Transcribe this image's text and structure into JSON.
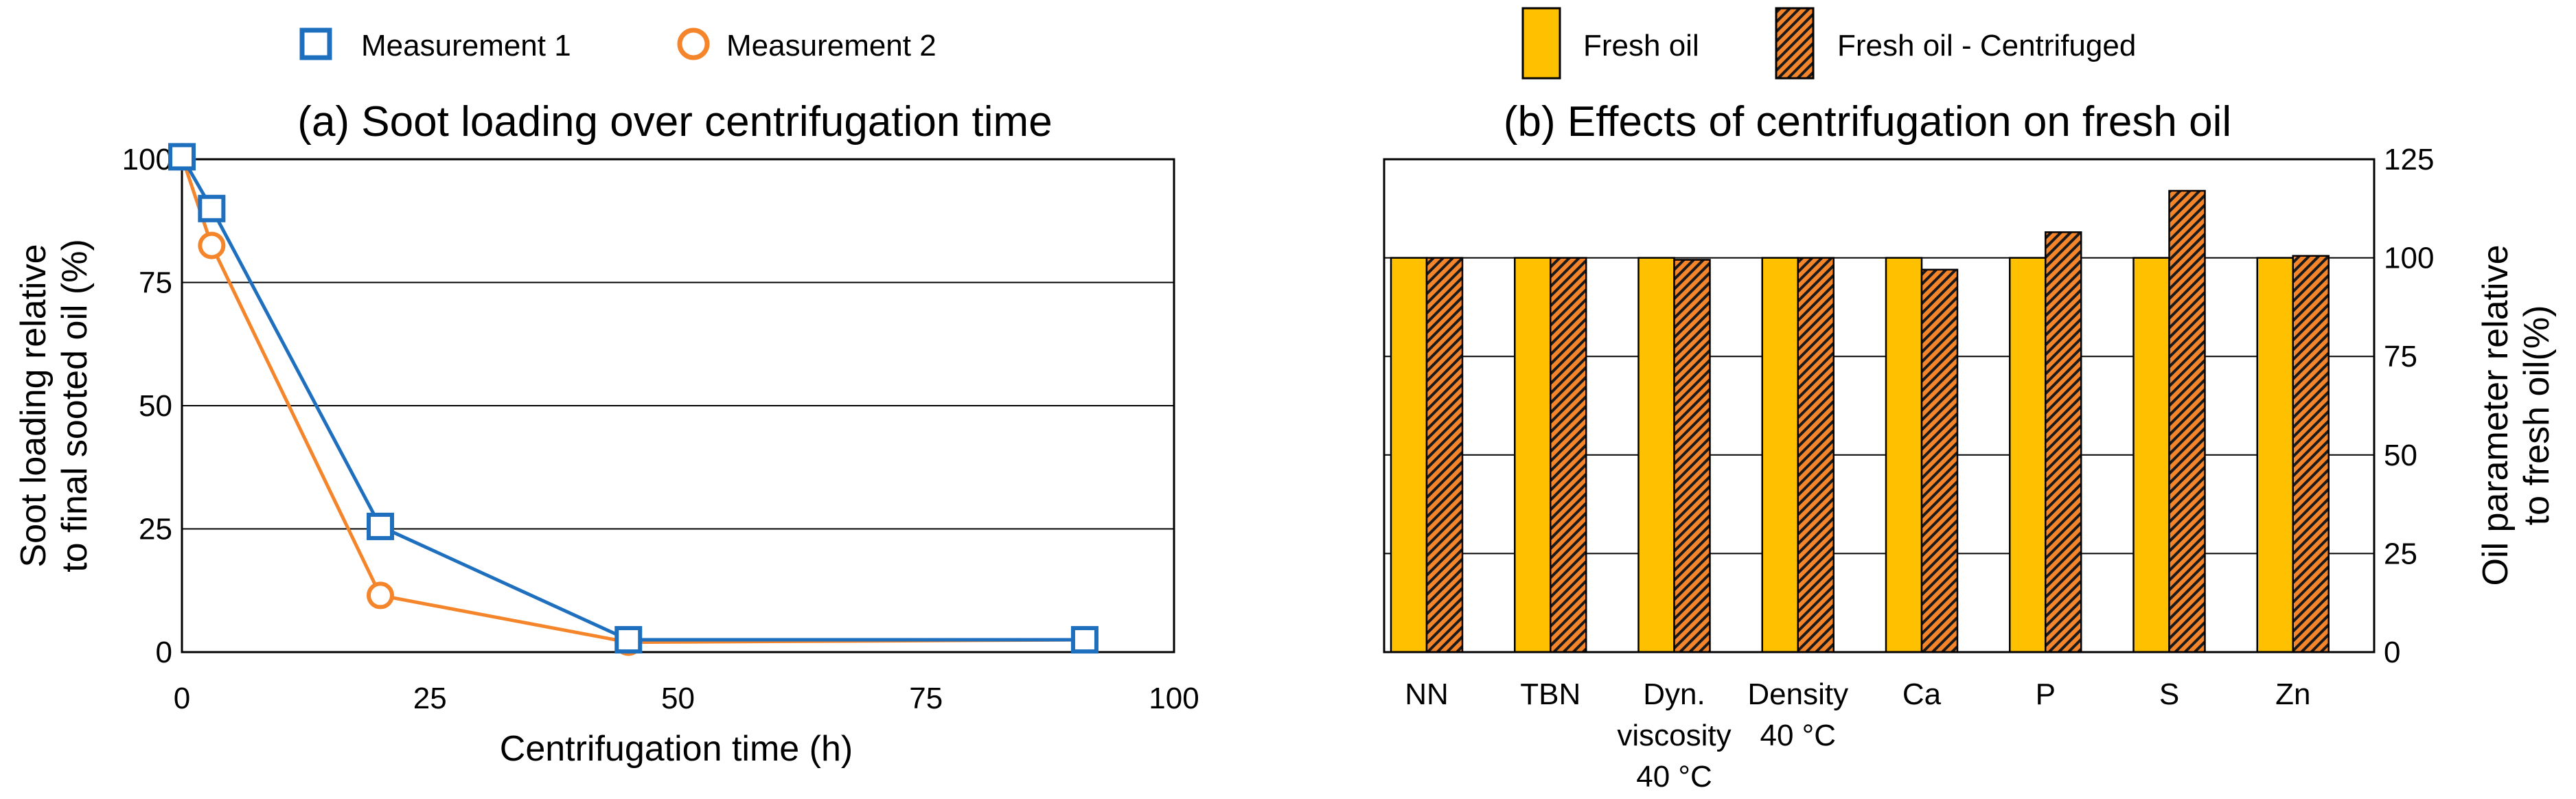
{
  "chart_data": [
    {
      "type": "line",
      "title": "(a) Soot loading over centrifugation time",
      "xlabel": "Centrifugation time (h)",
      "ylabel_lines": [
        "Soot loading relative",
        "to final sooted oil (%)"
      ],
      "xlim": [
        0,
        100
      ],
      "ylim": [
        0,
        100
      ],
      "xticks": [
        0,
        25,
        50,
        75,
        100
      ],
      "yticks": [
        0,
        25,
        50,
        75,
        100
      ],
      "xtick_labels": [
        "0",
        "25",
        "50",
        "75",
        "100"
      ],
      "ytick_labels": [
        "0",
        "25",
        "50",
        "75",
        "100"
      ],
      "grid": "horizontal",
      "legend_position": "top",
      "series": [
        {
          "name": "Measurement 1",
          "marker": "square",
          "color": "#1f6fbf",
          "x": [
            0,
            3,
            20,
            45,
            91
          ],
          "y": [
            100.5,
            90,
            25.5,
            2.5,
            2.5
          ]
        },
        {
          "name": "Measurement 2",
          "marker": "circle",
          "color": "#f5852a",
          "x": [
            0,
            3,
            20,
            45,
            91
          ],
          "y": [
            100.5,
            82.5,
            11.5,
            2,
            2.5
          ]
        }
      ]
    },
    {
      "type": "bar",
      "title": "(b) Effects of centrifugation on fresh oil",
      "ylabel_lines": [
        "Oil parameter relative",
        "to fresh oil(%)"
      ],
      "ylim": [
        0,
        125
      ],
      "yticks": [
        0,
        25,
        50,
        75,
        100,
        125
      ],
      "ytick_labels": [
        "0",
        "25",
        "50",
        "75",
        "100",
        "125"
      ],
      "y_axis_side": "right",
      "grid": "horizontal",
      "legend_position": "top",
      "categories": [
        [
          "NN"
        ],
        [
          "TBN"
        ],
        [
          "Dyn.",
          "viscosity",
          "40 °C"
        ],
        [
          "Density",
          "40 °C"
        ],
        [
          "Ca"
        ],
        [
          "P"
        ],
        [
          "S"
        ],
        [
          "Zn"
        ]
      ],
      "series": [
        {
          "name": "Fresh oil",
          "pattern": "solid",
          "color": "#ffc000",
          "values": [
            100,
            100,
            100,
            100,
            100,
            100,
            100,
            100
          ]
        },
        {
          "name": "Fresh oil - Centrifuged",
          "pattern": "hatched",
          "color": "#f5852a",
          "values": [
            100,
            100,
            99.5,
            100,
            97,
            106.5,
            117,
            100.5
          ]
        }
      ]
    }
  ]
}
